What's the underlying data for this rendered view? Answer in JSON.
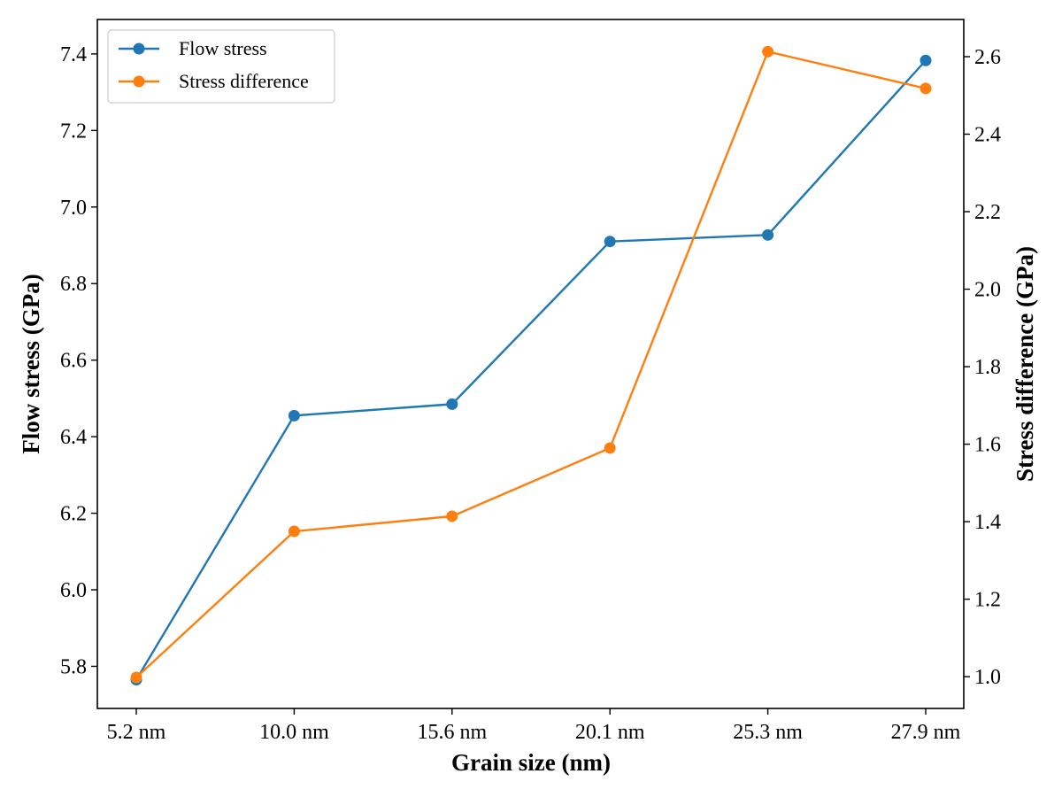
{
  "chart_data": {
    "type": "line",
    "title": "",
    "xlabel": "Grain size (nm)",
    "ylabel_left": "Flow stress (GPa)",
    "ylabel_right": "Stress difference (GPa)",
    "categories": [
      "5.2 nm",
      "10.0 nm",
      "15.6 nm",
      "20.1 nm",
      "25.3 nm",
      "27.9 nm"
    ],
    "left_axis": {
      "ylim": [
        5.69,
        7.49
      ],
      "ticks": [
        5.8,
        6.0,
        6.2,
        6.4,
        6.6,
        6.8,
        7.0,
        7.2,
        7.4
      ],
      "tick_labels": [
        "5.8",
        "6.0",
        "6.2",
        "6.4",
        "6.6",
        "6.8",
        "7.0",
        "7.2",
        "7.4"
      ]
    },
    "right_axis": {
      "ylim": [
        0.918,
        2.696
      ],
      "ticks": [
        1.0,
        1.2,
        1.4,
        1.6,
        1.8,
        2.0,
        2.2,
        2.4,
        2.6
      ],
      "tick_labels": [
        "1.0",
        "1.2",
        "1.4",
        "1.6",
        "1.8",
        "2.0",
        "2.2",
        "2.4",
        "2.6"
      ]
    },
    "series": [
      {
        "name": "Flow stress",
        "axis": "left",
        "color": "#1f77b4",
        "values": [
          5.765,
          6.455,
          6.485,
          6.91,
          6.927,
          7.383
        ]
      },
      {
        "name": "Stress difference",
        "axis": "right",
        "color": "#ff7f0e",
        "values": [
          0.998,
          1.375,
          1.414,
          1.59,
          2.613,
          2.518
        ]
      }
    ],
    "legend": {
      "position": "top-left",
      "entries": [
        "Flow stress",
        "Stress difference"
      ]
    },
    "grid": false
  }
}
